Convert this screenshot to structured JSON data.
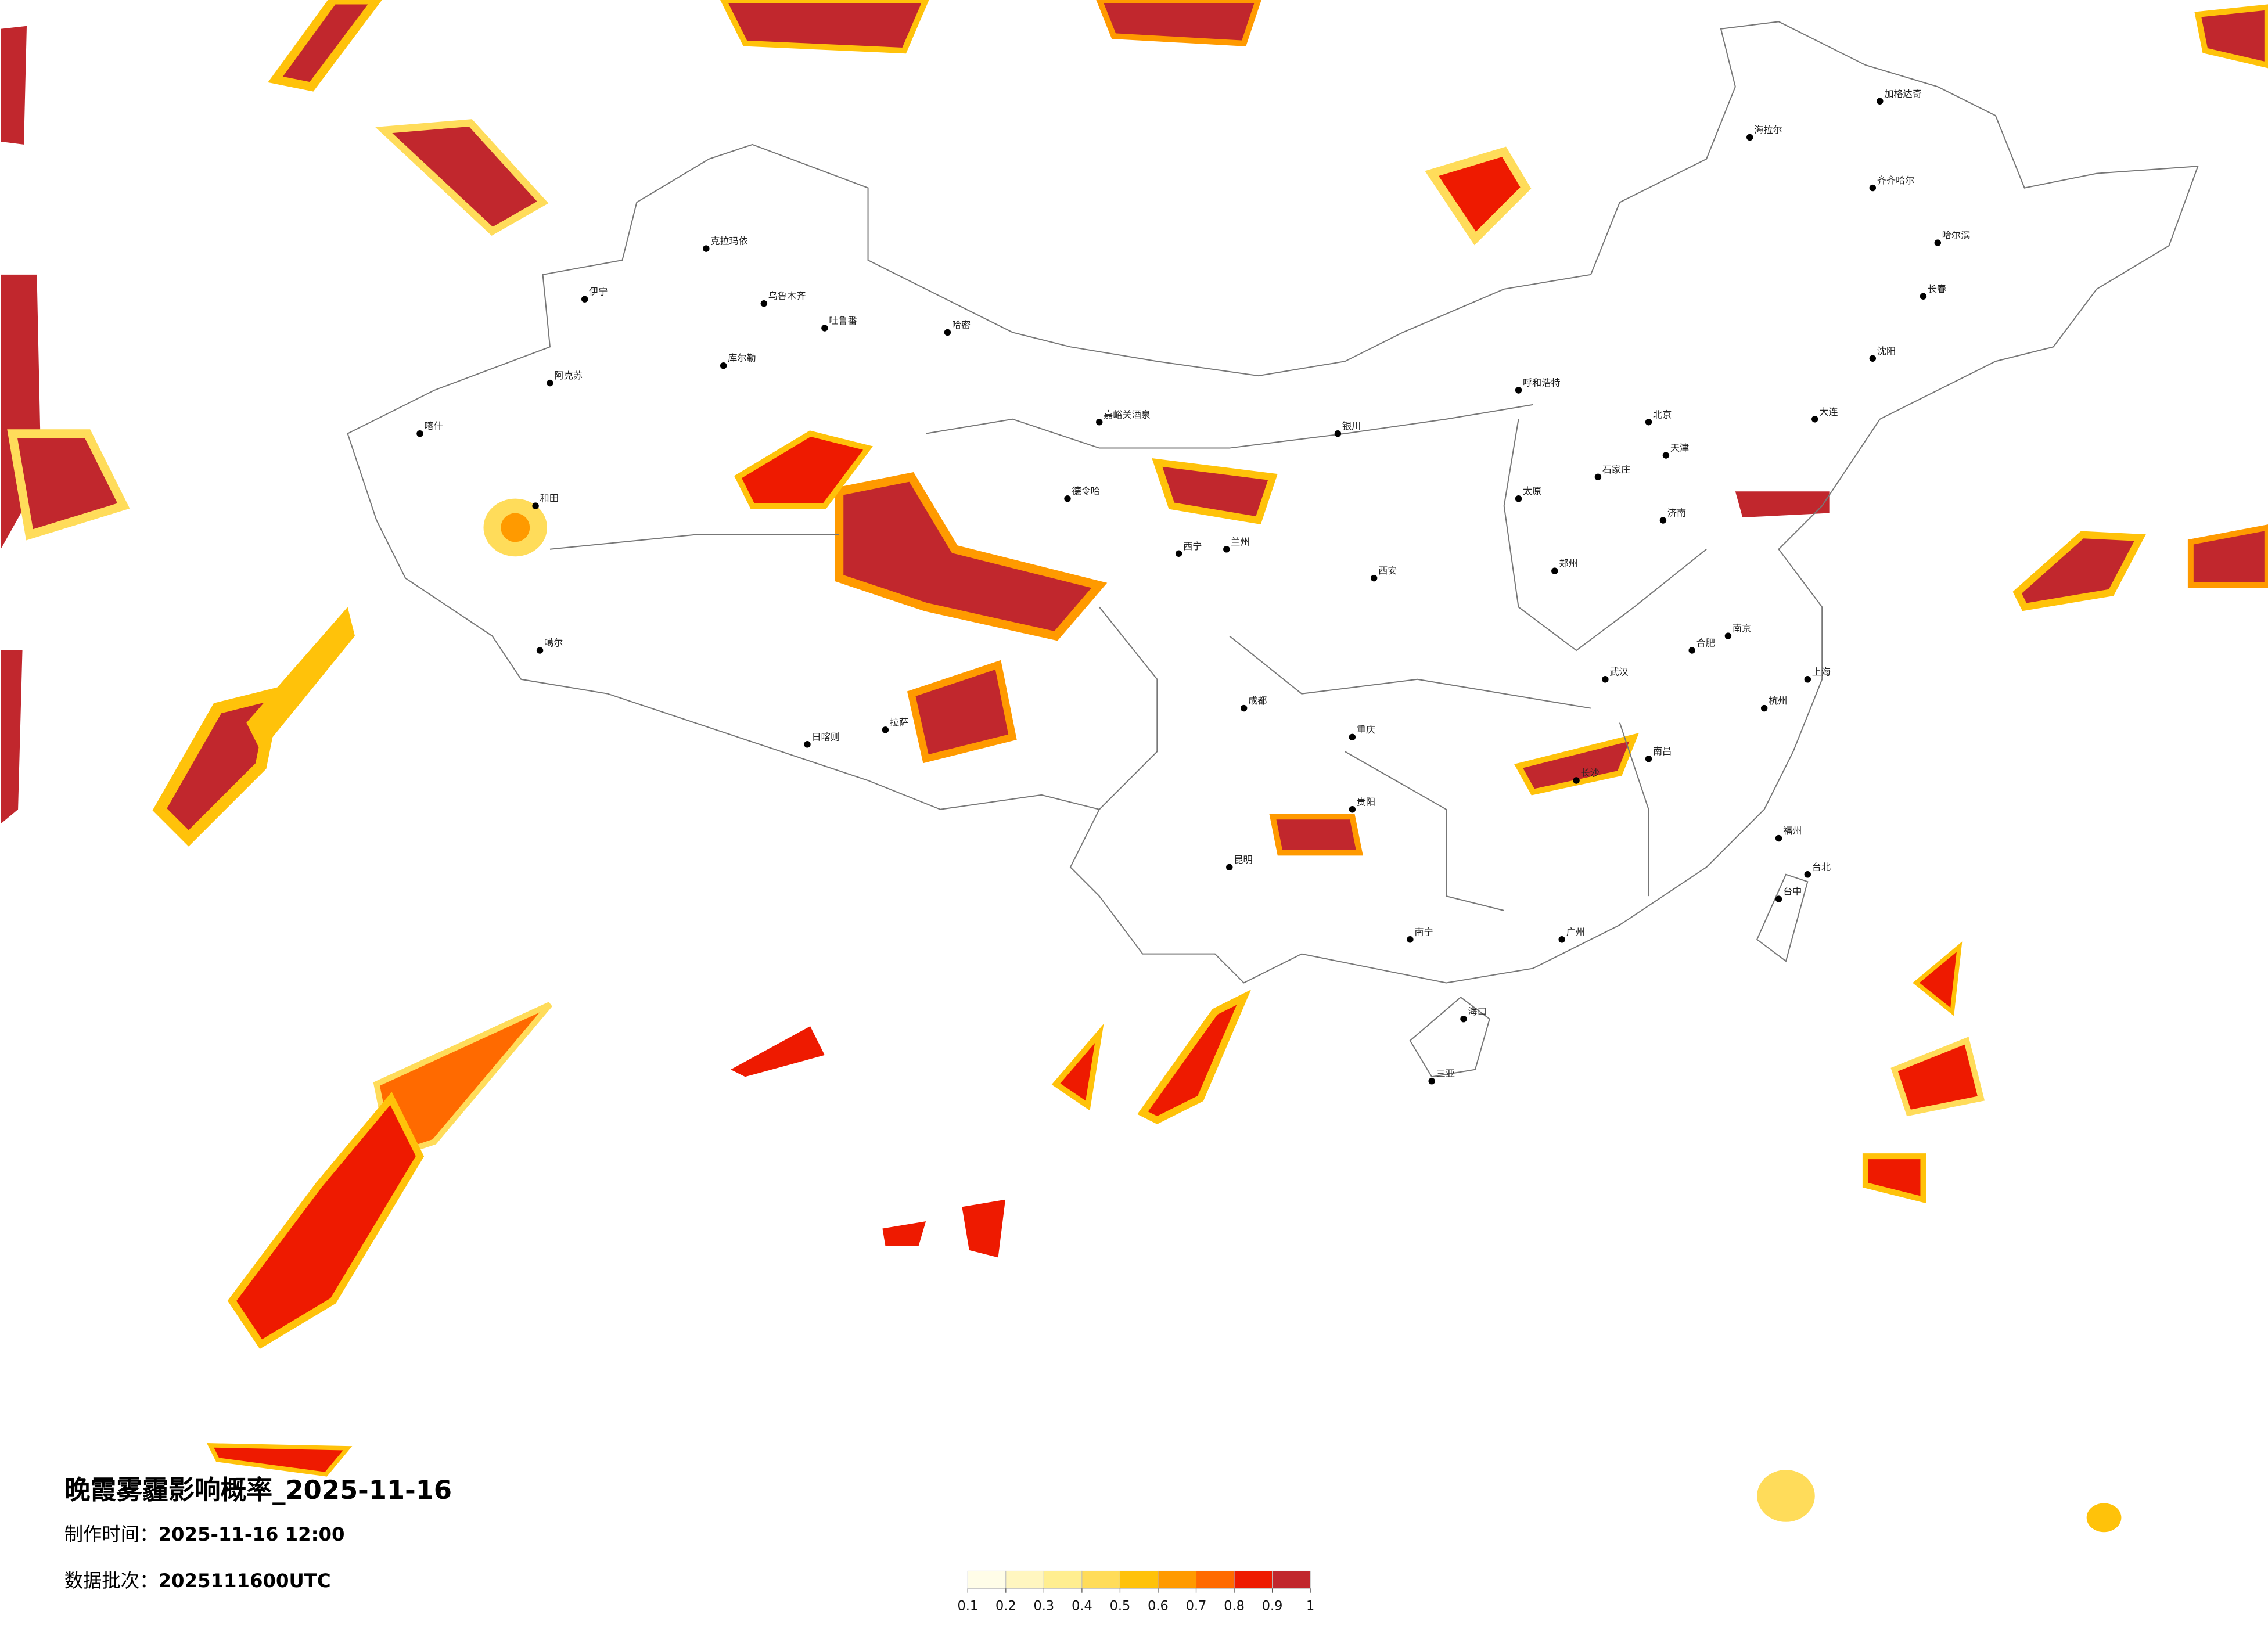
{
  "title": "晚霞雾霾影响概率_2025-11-16",
  "production_time": {
    "label": "制作时间：",
    "value": "2025-11-16 12:00"
  },
  "data_batch": {
    "label": "数据批次：",
    "value": "2025111600UTC"
  },
  "colorbar": {
    "ticks": [
      0.1,
      0.2,
      0.3,
      0.4,
      0.5,
      0.6,
      0.7,
      0.8,
      0.9,
      1
    ],
    "colors": [
      "#fffde8",
      "#fff6c0",
      "#ffee90",
      "#ffdc5a",
      "#ffc20a",
      "#ff9a00",
      "#ff6a00",
      "#ee1a00",
      "#c1272d"
    ]
  },
  "cities": [
    "克拉玛依",
    "乌鲁木齐",
    "吐鲁番",
    "哈密",
    "伊宁",
    "库尔勒",
    "阿克苏",
    "喀什",
    "和田",
    "噶尔",
    "日喀则",
    "拉萨",
    "德令哈",
    "嘉峪关酒泉",
    "西宁",
    "兰州",
    "银川",
    "呼和浩特",
    "北京",
    "天津",
    "石家庄",
    "太原",
    "济南",
    "西安",
    "郑州",
    "成都",
    "重庆",
    "武汉",
    "长沙",
    "南昌",
    "合肥",
    "南京",
    "上海",
    "杭州",
    "福州",
    "广州",
    "南宁",
    "海口",
    "三亚",
    "昆明",
    "贵阳",
    "台北",
    "台中",
    "哈尔滨",
    "长春",
    "沈阳",
    "大连",
    "海拉尔",
    "齐齐哈尔",
    "加格达奇"
  ]
}
